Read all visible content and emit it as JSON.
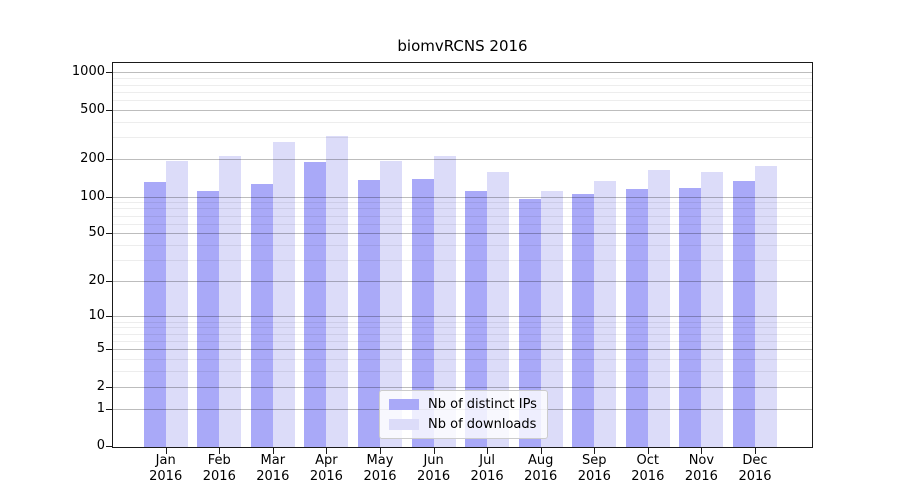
{
  "title": "biomvRCNS 2016",
  "chart_data": {
    "type": "bar",
    "title": "biomvRCNS 2016",
    "categories": [
      "Jan",
      "Feb",
      "Mar",
      "Apr",
      "May",
      "Jun",
      "Jul",
      "Aug",
      "Sep",
      "Oct",
      "Nov",
      "Dec"
    ],
    "year": "2016",
    "series": [
      {
        "name": "Nb of distinct IPs",
        "color": "#a9a9f8",
        "values": [
          130,
          110,
          126,
          189,
          136,
          139,
          110,
          95,
          104,
          115,
          117,
          134
        ]
      },
      {
        "name": "Nb of downloads",
        "color": "#dcdcf9",
        "values": [
          195,
          214,
          277,
          306,
          195,
          214,
          157,
          111,
          133,
          163,
          157,
          176
        ]
      }
    ],
    "xlabel": "",
    "ylabel": "",
    "y_scale": "log10(value+1)",
    "y_ticks": [
      0,
      1,
      2,
      5,
      10,
      20,
      50,
      100,
      200,
      500,
      1000
    ],
    "y_minor_gridlines": [
      3,
      4,
      6,
      7,
      8,
      9,
      30,
      40,
      60,
      70,
      80,
      90,
      300,
      400,
      600,
      700,
      800,
      900
    ],
    "ylim": [
      0,
      1190
    ],
    "grid": true,
    "legend_position": "lower center"
  }
}
